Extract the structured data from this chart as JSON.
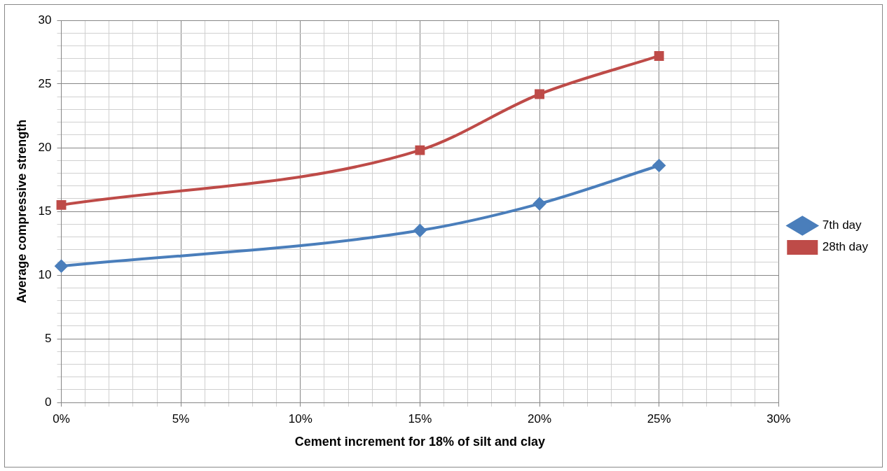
{
  "chart_data": {
    "type": "line",
    "xlabel": "Cement increment for 18% of silt and clay",
    "ylabel": "Average compressive strength",
    "x": [
      0,
      15,
      20,
      25
    ],
    "series": [
      {
        "name": "7th day",
        "color": "#4a7ebb",
        "marker": "diamond",
        "values": [
          10.7,
          13.5,
          15.6,
          18.6
        ]
      },
      {
        "name": "28th day",
        "color": "#be4b48",
        "marker": "square",
        "values": [
          15.5,
          19.8,
          24.2,
          27.2
        ]
      }
    ],
    "xlim": [
      0,
      30
    ],
    "ylim": [
      0,
      30
    ],
    "xticks": [
      {
        "value": 0,
        "label": "0%"
      },
      {
        "value": 1,
        "label": null
      },
      {
        "value": 2,
        "label": null
      },
      {
        "value": 3,
        "label": null
      },
      {
        "value": 4,
        "label": null
      },
      {
        "value": 5,
        "label": "5%"
      },
      {
        "value": 6,
        "label": null
      },
      {
        "value": 7,
        "label": null
      },
      {
        "value": 8,
        "label": null
      },
      {
        "value": 9,
        "label": null
      },
      {
        "value": 10,
        "label": "10%"
      },
      {
        "value": 11,
        "label": null
      },
      {
        "value": 12,
        "label": null
      },
      {
        "value": 13,
        "label": null
      },
      {
        "value": 14,
        "label": null
      },
      {
        "value": 15,
        "label": "15%"
      },
      {
        "value": 16,
        "label": null
      },
      {
        "value": 17,
        "label": null
      },
      {
        "value": 18,
        "label": null
      },
      {
        "value": 19,
        "label": null
      },
      {
        "value": 20,
        "label": "20%"
      },
      {
        "value": 21,
        "label": null
      },
      {
        "value": 22,
        "label": null
      },
      {
        "value": 23,
        "label": null
      },
      {
        "value": 24,
        "label": null
      },
      {
        "value": 25,
        "label": "25%"
      },
      {
        "value": 26,
        "label": null
      },
      {
        "value": 27,
        "label": null
      },
      {
        "value": 28,
        "label": null
      },
      {
        "value": 29,
        "label": null
      },
      {
        "value": 30,
        "label": "30%"
      }
    ],
    "yticks": [
      0,
      {
        "value": 1,
        "label": null
      },
      {
        "value": 2,
        "label": null
      },
      {
        "value": 3,
        "label": null
      },
      {
        "value": 4,
        "label": null
      },
      5,
      {
        "value": 6,
        "label": null
      },
      {
        "value": 7,
        "label": null
      },
      {
        "value": 8,
        "label": null
      },
      {
        "value": 9,
        "label": null
      },
      10,
      {
        "value": 11,
        "label": null
      },
      {
        "value": 12,
        "label": null
      },
      {
        "value": 13,
        "label": null
      },
      {
        "value": 14,
        "label": null
      },
      15,
      {
        "value": 16,
        "label": null
      },
      {
        "value": 17,
        "label": null
      },
      {
        "value": 18,
        "label": null
      },
      {
        "value": 19,
        "label": null
      },
      20,
      {
        "value": 21,
        "label": null
      },
      {
        "value": 22,
        "label": null
      },
      {
        "value": 23,
        "label": null
      },
      {
        "value": 24,
        "label": null
      },
      25,
      {
        "value": 26,
        "label": null
      },
      {
        "value": 27,
        "label": null
      },
      {
        "value": 28,
        "label": null
      },
      {
        "value": 29,
        "label": null
      },
      30
    ],
    "grid": true,
    "legend": "right",
    "line_style": "solid"
  }
}
